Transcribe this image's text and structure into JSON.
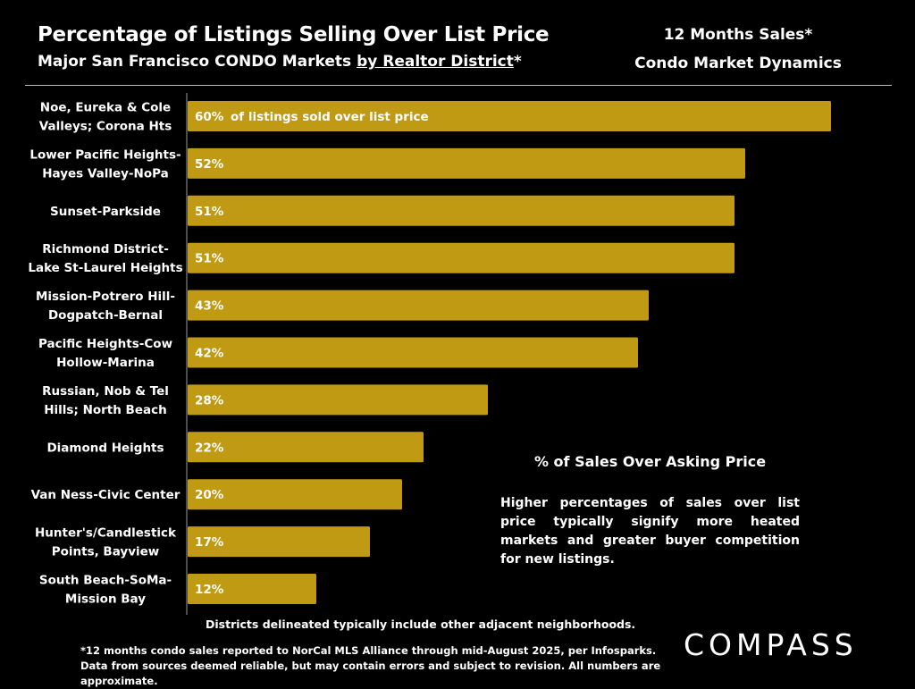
{
  "header": {
    "title": "Percentage of Listings Selling Over List Price",
    "subtitle_pre": "Major San Francisco CONDO Markets ",
    "subtitle_underlined": "by Realtor District",
    "subtitle_post": "*",
    "right_line1": "12 Months Sales*",
    "right_line2": "Condo Market Dynamics"
  },
  "chart_data": {
    "type": "bar",
    "orientation": "horizontal",
    "title": "Percentage of Listings Selling Over List Price",
    "xlabel": "",
    "ylabel": "",
    "xlim": [
      0,
      60
    ],
    "bar_color": "#C09A12",
    "first_bar_note": "of listings sold over list price",
    "categories": [
      [
        "Noe, Eureka & Cole",
        "Valleys; Corona Hts"
      ],
      [
        "Lower Pacific Heights-",
        "Hayes Valley-NoPa"
      ],
      [
        "Sunset-Parkside"
      ],
      [
        "Richmond District-",
        "Lake St-Laurel Heights"
      ],
      [
        "Mission-Potrero Hill-",
        "Dogpatch-Bernal"
      ],
      [
        "Pacific Heights-Cow",
        "Hollow-Marina"
      ],
      [
        "Russian, Nob & Tel",
        "Hills; North Beach"
      ],
      [
        "Diamond Heights"
      ],
      [
        "Van Ness-Civic Center"
      ],
      [
        "Hunter's/Candlestick",
        "Points, Bayview"
      ],
      [
        "South Beach-SoMa-",
        "Mission Bay"
      ]
    ],
    "values": [
      60,
      52,
      51,
      51,
      43,
      42,
      28,
      22,
      20,
      17,
      12
    ],
    "value_labels": [
      "60%",
      "52%",
      "51%",
      "51%",
      "43%",
      "42%",
      "28%",
      "22%",
      "20%",
      "17%",
      "12%"
    ]
  },
  "annotation": {
    "heading": "% of Sales Over Asking Price",
    "body": "Higher percentages of sales over list price typically signify more heated markets and greater buyer competition for new listings."
  },
  "footer": {
    "note": "Districts delineated typically include other adjacent neighborhoods.",
    "source": "*12 months condo sales reported to NorCal MLS Alliance through mid-August 2025, per Infosparks. Data from sources deemed reliable, but may contain errors and subject to revision. All numbers are approximate."
  },
  "logo": {
    "text": "COMPASS"
  }
}
